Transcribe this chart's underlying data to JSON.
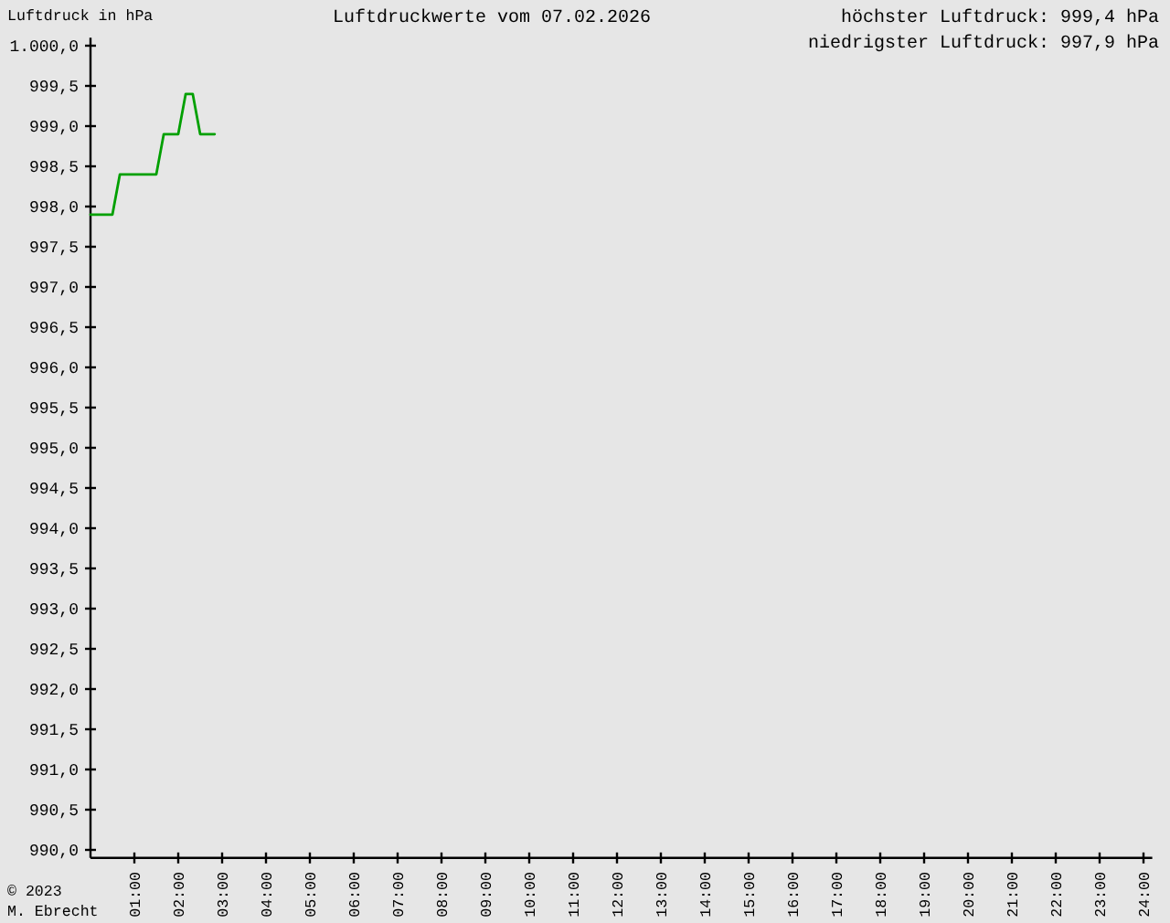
{
  "chart_data": {
    "type": "line",
    "title": "Luftdruckwerte vom 07.02.2026",
    "ylabel": "Luftdruck in hPa",
    "annotations": [
      "höchster Luftdruck: 999,4 hPa",
      "niedrigster Luftdruck: 997,9 hPa",
      "© 2023",
      "M. Ebrecht"
    ],
    "x": [
      0,
      0.5,
      0.67,
      1.5,
      1.67,
      2.0,
      2.17,
      2.33,
      2.5,
      2.83
    ],
    "values": [
      997.9,
      997.9,
      998.4,
      998.4,
      998.9,
      998.9,
      999.4,
      999.4,
      998.9,
      998.9
    ],
    "color": "#00a000",
    "xlim": [
      0,
      24.2
    ],
    "xticks": [
      {
        "value": 1,
        "label": "01:00"
      },
      {
        "value": 2,
        "label": "02:00"
      },
      {
        "value": 3,
        "label": "03:00"
      },
      {
        "value": 4,
        "label": "04:00"
      },
      {
        "value": 5,
        "label": "05:00"
      },
      {
        "value": 6,
        "label": "06:00"
      },
      {
        "value": 7,
        "label": "07:00"
      },
      {
        "value": 8,
        "label": "08:00"
      },
      {
        "value": 9,
        "label": "09:00"
      },
      {
        "value": 10,
        "label": "10:00"
      },
      {
        "value": 11,
        "label": "11:00"
      },
      {
        "value": 12,
        "label": "12:00"
      },
      {
        "value": 13,
        "label": "13:00"
      },
      {
        "value": 14,
        "label": "14:00"
      },
      {
        "value": 15,
        "label": "15:00"
      },
      {
        "value": 16,
        "label": "16:00"
      },
      {
        "value": 17,
        "label": "17:00"
      },
      {
        "value": 18,
        "label": "18:00"
      },
      {
        "value": 19,
        "label": "19:00"
      },
      {
        "value": 20,
        "label": "20:00"
      },
      {
        "value": 21,
        "label": "21:00"
      },
      {
        "value": 22,
        "label": "22:00"
      },
      {
        "value": 23,
        "label": "23:00"
      },
      {
        "value": 24,
        "label": "24:00"
      }
    ],
    "ylim": [
      989.9,
      1000.1
    ],
    "yticks": [
      {
        "value": 990,
        "label": "990,0"
      },
      {
        "value": 990.5,
        "label": "990,5"
      },
      {
        "value": 991,
        "label": "991,0"
      },
      {
        "value": 991.5,
        "label": "991,5"
      },
      {
        "value": 992,
        "label": "992,0"
      },
      {
        "value": 992.5,
        "label": "992,5"
      },
      {
        "value": 993,
        "label": "993,0"
      },
      {
        "value": 993.5,
        "label": "993,5"
      },
      {
        "value": 994,
        "label": "994,0"
      },
      {
        "value": 994.5,
        "label": "994,5"
      },
      {
        "value": 995,
        "label": "995,0"
      },
      {
        "value": 995.5,
        "label": "995,5"
      },
      {
        "value": 996,
        "label": "996,0"
      },
      {
        "value": 996.5,
        "label": "996,5"
      },
      {
        "value": 997,
        "label": "997,0"
      },
      {
        "value": 997.5,
        "label": "997,5"
      },
      {
        "value": 998,
        "label": "998,0"
      },
      {
        "value": 998.5,
        "label": "998,5"
      },
      {
        "value": 999,
        "label": "999,0"
      },
      {
        "value": 999.5,
        "label": "999,5"
      },
      {
        "value": 1000,
        "label": "1.000,0"
      }
    ]
  }
}
